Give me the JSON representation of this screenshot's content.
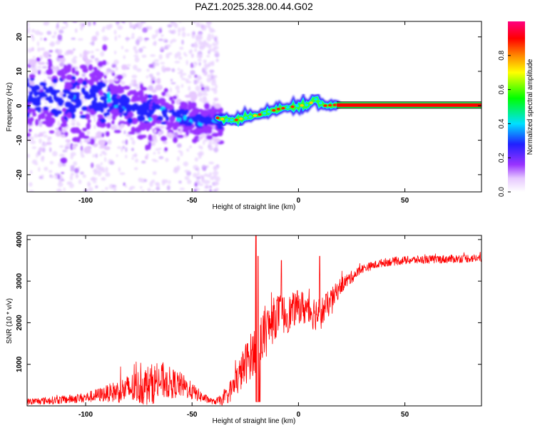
{
  "title": "PAZ1.2025.328.00.44.G02",
  "chart_data": [
    {
      "type": "heatmap",
      "name": "spectrogram",
      "xlabel": "Height of straight line (km)",
      "ylabel": "Frequency (Hz)",
      "xlim": [
        -127.5,
        86
      ],
      "ylim": [
        -25,
        24.5
      ],
      "xticks": [
        -100,
        -50,
        0,
        50
      ],
      "yticks": [
        -20,
        -10,
        0,
        10,
        20
      ],
      "colorbar": {
        "label": "Normalized spectral amplitude",
        "range": [
          0.0,
          1.0
        ],
        "ticks": [
          0.0,
          0.2,
          0.4,
          0.6,
          0.8
        ],
        "tick_labels": [
          "0.0",
          "0.2",
          "0.4",
          "0.6",
          "0.8"
        ],
        "colormap": "hsv-like: white, magenta, purple, blue, cyan, green, yellow, orange, red, pink"
      },
      "features": {
        "noisy_region_x": [
          -127.5,
          -38
        ],
        "scatter_band_center_hz": [
          [
            -125,
            3
          ],
          [
            -100,
            2
          ],
          [
            -90,
            2
          ],
          [
            -80,
            0
          ],
          [
            -70,
            -1.5
          ],
          [
            -60,
            -2.5
          ],
          [
            -50,
            -4
          ],
          [
            -40,
            -4
          ]
        ],
        "tracked_signal_x": [
          -38,
          18
        ],
        "tracked_signal_hz": [
          [
            -38,
            -3.5
          ],
          [
            -35,
            -4
          ],
          [
            -30,
            -4.2
          ],
          [
            -25,
            -3.5
          ],
          [
            -20,
            -2.8
          ],
          [
            -15,
            -2.0
          ],
          [
            -10,
            -1.0
          ],
          [
            -5,
            -0.5
          ],
          [
            0,
            0
          ],
          [
            5,
            0.3
          ],
          [
            8,
            2.0
          ],
          [
            10,
            1.0
          ],
          [
            12,
            0
          ],
          [
            18,
            0.3
          ]
        ],
        "constant_line_x": [
          18,
          86
        ],
        "constant_line_hz": 0.2
      }
    },
    {
      "type": "line",
      "name": "snr",
      "xlabel": "Height of straight line (km)",
      "ylabel": "SNR (10 * v/v)",
      "xlim": [
        -127.5,
        86
      ],
      "ylim": [
        0,
        4100
      ],
      "xticks": [
        -100,
        -50,
        0,
        50
      ],
      "yticks": [
        1000,
        2000,
        3000,
        4000
      ],
      "series": [
        {
          "name": "SNR",
          "color": "#ff0000",
          "envelope_x": [
            -127.5,
            -110,
            -100,
            -90,
            -80,
            -70,
            -65,
            -55,
            -45,
            -40,
            -35,
            -30,
            -25,
            -20,
            -15,
            -10,
            -5,
            0,
            5,
            10,
            15,
            20,
            25,
            30,
            40,
            50,
            60,
            70,
            80,
            86
          ],
          "envelope_mean": [
            100,
            150,
            200,
            300,
            400,
            500,
            600,
            500,
            200,
            100,
            150,
            500,
            1000,
            1400,
            1800,
            2200,
            2200,
            2400,
            2300,
            2200,
            2500,
            2900,
            3100,
            3300,
            3450,
            3500,
            3520,
            3530,
            3550,
            3550
          ],
          "envelope_noise": [
            80,
            100,
            120,
            200,
            350,
            500,
            450,
            300,
            120,
            60,
            150,
            350,
            500,
            600,
            600,
            500,
            450,
            400,
            450,
            400,
            300,
            200,
            150,
            100,
            100,
            100,
            100,
            100,
            100,
            100
          ],
          "spikes": [
            [
              -20,
              4100
            ],
            [
              -19,
              3600
            ],
            [
              -8,
              3500
            ],
            [
              10,
              3600
            ]
          ]
        }
      ]
    }
  ]
}
